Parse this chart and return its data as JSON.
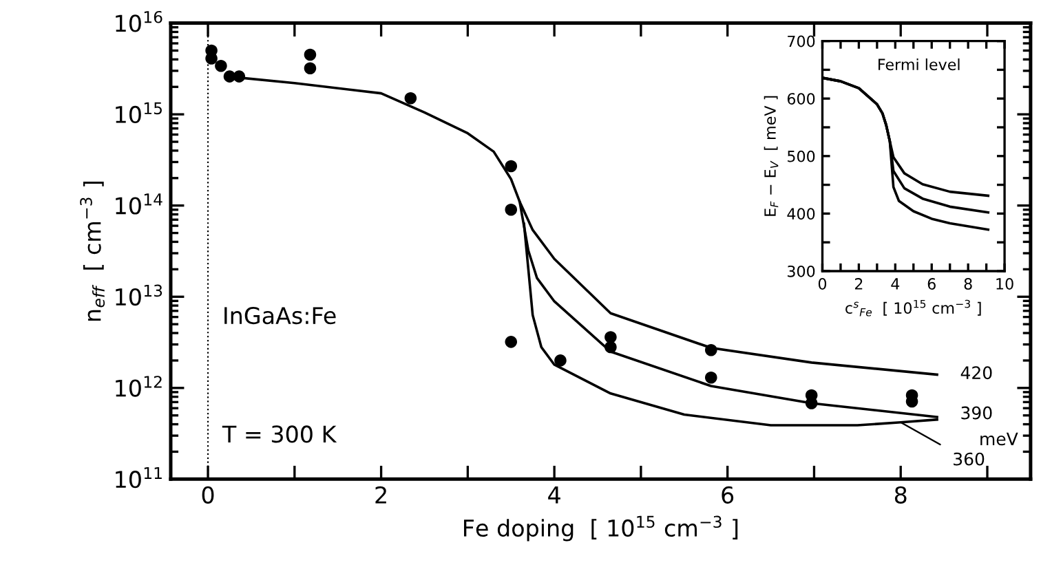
{
  "chart_data": [
    {
      "type": "scatter",
      "xlabel": "Fe doping  [ 10$^{15}$ cm$^{−3}$ ]",
      "ylabel": "n$_{eff}$  [ cm$^{−3}$ ]",
      "log": "y",
      "xlim": [
        -0.43,
        9.5
      ],
      "ylim": [
        100000000000.0,
        1e+16
      ],
      "xticks": [
        0,
        {
          "value": 1,
          "label": null
        },
        2,
        {
          "value": 3,
          "label": null
        },
        4,
        {
          "value": 5,
          "label": null
        },
        6,
        {
          "value": 7,
          "label": null
        },
        8,
        {
          "value": 9,
          "label": null
        }
      ],
      "yticks": [
        {
          "value": 100000000000.0,
          "label": "10$^{11}$"
        },
        {
          "value": 1000000000000.0,
          "label": "10$^{12}$"
        },
        {
          "value": 10000000000000.0,
          "label": "10$^{13}$"
        },
        {
          "value": 100000000000000.0,
          "label": "10$^{14}$"
        },
        {
          "value": 1000000000000000.0,
          "label": "10$^{15}$"
        },
        {
          "value": 1e+16,
          "label": "10$^{16}$"
        }
      ],
      "grid": false,
      "legend": false,
      "ref_lines": [
        {
          "axis": "x",
          "value": 0,
          "line_style": "dotted",
          "color": "#000000"
        }
      ],
      "annotations": [
        "InGaAs:Fe",
        "T = 300 K",
        "meV",
        "420",
        "390",
        {
          "text": "360",
          "x": 8.0,
          "y": 420000000000.0
        }
      ],
      "series": [
        {
          "type": "scatter",
          "marker": "circle",
          "color": "#000000",
          "x": [
            0.04,
            0.04,
            0.15,
            0.25,
            0.36,
            1.18,
            1.18,
            2.34,
            3.5,
            3.5,
            3.5,
            4.07,
            4.65,
            4.65,
            5.81,
            5.81,
            6.97,
            6.97,
            8.13,
            8.13
          ],
          "values": [
            5000000000000000.0,
            4100000000000000.0,
            3400000000000000.0,
            2600000000000000.0,
            2600000000000000.0,
            4500000000000000.0,
            3200000000000000.0,
            1500000000000000.0,
            270000000000000.0,
            90000000000000.0,
            3200000000000.0,
            2000000000000.0,
            3600000000000.0,
            2800000000000.0,
            2600000000000.0,
            1300000000000.0,
            830000000000.0,
            680000000000.0,
            830000000000.0,
            710000000000.0
          ]
        },
        {
          "type": "line",
          "color": "#000000",
          "x": [
            3.6,
            3.75,
            4.0,
            4.65,
            5.81,
            6.97,
            8.42
          ],
          "values": [
            110000000000000.0,
            54000000000000.0,
            26000000000000.0,
            6600000000000.0,
            2750000000000.0,
            1900000000000.0,
            1400000000000.0
          ]
        },
        {
          "type": "line",
          "color": "#000000",
          "x": [
            0.4,
            1.0,
            2.0,
            2.5,
            3.0,
            3.3,
            3.5,
            3.6,
            3.7,
            3.8,
            4.0,
            4.65,
            5.81,
            6.97,
            8.42
          ],
          "values": [
            2500000000000000.0,
            2200000000000000.0,
            1700000000000000.0,
            1050000000000000.0,
            620000000000000.0,
            390000000000000.0,
            195000000000000.0,
            110000000000000.0,
            32000000000000.0,
            16000000000000.0,
            8900000000000.0,
            2500000000000.0,
            1050000000000.0,
            680000000000.0,
            480000000000.0
          ]
        },
        {
          "type": "line",
          "color": "#000000",
          "x": [
            3.65,
            3.7,
            3.75,
            3.85,
            4.0,
            4.65,
            5.5,
            6.5,
            7.5,
            8.0,
            8.42
          ],
          "values": [
            63000000000000.0,
            20000000000000.0,
            6300000000000.0,
            2800000000000.0,
            1800000000000.0,
            870000000000.0,
            510000000000.0,
            390000000000.0,
            390000000000.0,
            420000000000.0,
            450000000000.0
          ]
        }
      ]
    },
    {
      "type": "line",
      "xlabel": "c$^{s}$$_{Fe}$  [ 10$^{15}$ cm$^{−3}$ ]",
      "ylabel": "E$_{F}$ − E$_{V}$  [ meV ]",
      "xlim": [
        0,
        10
      ],
      "ylim": [
        300,
        700
      ],
      "xticks": [
        0,
        {
          "value": 1,
          "label": null
        },
        2,
        {
          "value": 3,
          "label": null
        },
        4,
        {
          "value": 5,
          "label": null
        },
        6,
        {
          "value": 7,
          "label": null
        },
        8,
        {
          "value": 9,
          "label": null
        },
        10
      ],
      "yticks": [
        300,
        {
          "value": 350,
          "label": null
        },
        400,
        {
          "value": 450,
          "label": null
        },
        500,
        {
          "value": 550,
          "label": null
        },
        600,
        {
          "value": 650,
          "label": null
        },
        700
      ],
      "grid": false,
      "legend": false,
      "annotations": [
        "Fermi level"
      ],
      "series": [
        {
          "color": "#000000",
          "x": [
            0,
            1,
            2,
            3,
            3.3,
            3.5,
            3.7,
            3.9,
            4.5,
            5.5,
            7,
            9.1
          ],
          "values": [
            636,
            630,
            618,
            590,
            574,
            554,
            526,
            498,
            470,
            451,
            438,
            431
          ]
        },
        {
          "color": "#000000",
          "x": [
            0,
            1,
            2,
            3,
            3.3,
            3.5,
            3.7,
            3.9,
            4.5,
            5.5,
            7,
            9.1
          ],
          "values": [
            636,
            630,
            618,
            590,
            574,
            554,
            526,
            474,
            444,
            426,
            412,
            402
          ]
        },
        {
          "color": "#000000",
          "x": [
            0,
            1,
            2,
            3,
            3.3,
            3.5,
            3.7,
            3.9,
            4.2,
            5,
            6,
            7,
            9.1
          ],
          "values": [
            636,
            630,
            618,
            590,
            574,
            554,
            526,
            446,
            422,
            404,
            391,
            383,
            372
          ]
        }
      ]
    }
  ]
}
